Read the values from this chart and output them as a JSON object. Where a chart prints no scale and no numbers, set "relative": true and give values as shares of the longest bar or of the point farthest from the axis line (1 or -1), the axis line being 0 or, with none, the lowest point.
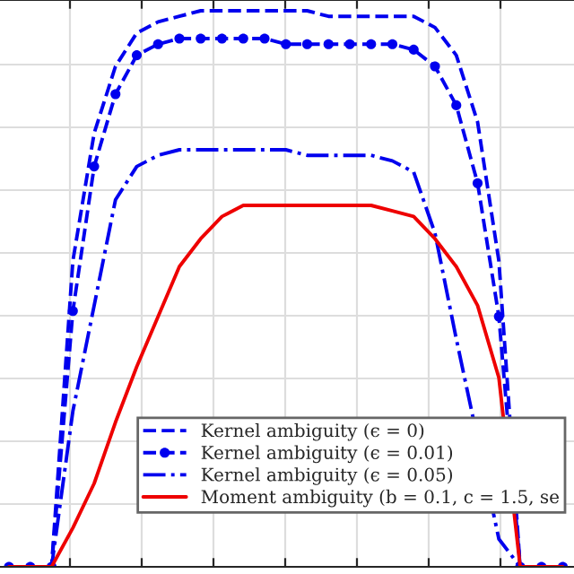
{
  "chart_data": {
    "type": "line",
    "relative": true,
    "grid": true,
    "legend": "bottom right",
    "categories": [
      null,
      null,
      null,
      null,
      null,
      null,
      null,
      null,
      null,
      null,
      null,
      null,
      null,
      null,
      null,
      null,
      null,
      null,
      null,
      null,
      null,
      null,
      null,
      null,
      null,
      null,
      null
    ],
    "series": [
      {
        "name": "Kernel ambiguity (ϵ = 0)",
        "color": "#0000ee",
        "line_style": "dashed",
        "marker": "none",
        "values": [
          0,
          0,
          0,
          0.55,
          0.78,
          0.9,
          0.96,
          0.98,
          0.99,
          1,
          1,
          1,
          1,
          1,
          1,
          0.99,
          0.99,
          0.99,
          0.99,
          0.99,
          0.97,
          0.92,
          0.8,
          0.55,
          0,
          0,
          0
        ]
      },
      {
        "name": "Kernel ambiguity (ϵ = 0.01)",
        "color": "#0000ee",
        "line_style": "dashed",
        "marker": "circle",
        "values": [
          0,
          0,
          0,
          0.46,
          0.72,
          0.85,
          0.92,
          0.94,
          0.95,
          0.95,
          0.95,
          0.95,
          0.95,
          0.94,
          0.94,
          0.94,
          0.94,
          0.94,
          0.94,
          0.93,
          0.9,
          0.83,
          0.69,
          0.45,
          0,
          0,
          0
        ]
      },
      {
        "name": "Kernel ambiguity (ϵ = 0.05)",
        "color": "#0000ee",
        "line_style": "dashdot",
        "marker": "none",
        "values": [
          0,
          0,
          0,
          0.28,
          0.47,
          0.66,
          0.72,
          0.74,
          0.75,
          0.75,
          0.75,
          0.75,
          0.75,
          0.75,
          0.74,
          0.74,
          0.74,
          0.74,
          0.73,
          0.71,
          0.6,
          0.41,
          null,
          0.05,
          0,
          0,
          0
        ]
      },
      {
        "name": "Moment ambiguity (b = 0.1, c = 1.5, se",
        "color": "#ee0000",
        "line_style": "solid",
        "marker": "none",
        "values": [
          0,
          0,
          0,
          0.07,
          0.15,
          0.26,
          0.36,
          0.45,
          0.54,
          0.59,
          0.63,
          0.65,
          0.65,
          0.65,
          0.65,
          0.65,
          0.65,
          0.65,
          0.64,
          0.63,
          0.59,
          0.54,
          0.47,
          0.34,
          0,
          0,
          0
        ]
      }
    ]
  }
}
